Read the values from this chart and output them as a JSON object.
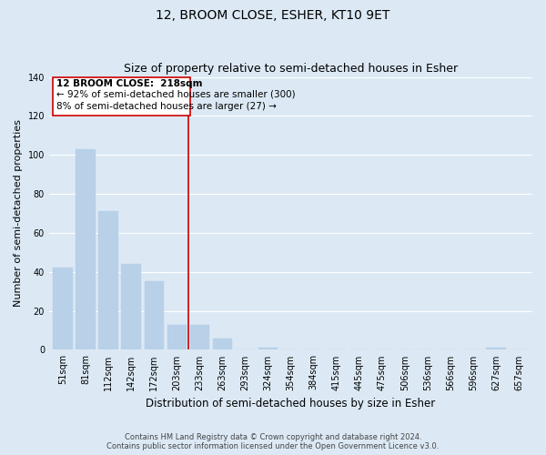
{
  "title": "12, BROOM CLOSE, ESHER, KT10 9ET",
  "subtitle": "Size of property relative to semi-detached houses in Esher",
  "xlabel": "Distribution of semi-detached houses by size in Esher",
  "ylabel": "Number of semi-detached properties",
  "bar_labels": [
    "51sqm",
    "81sqm",
    "112sqm",
    "142sqm",
    "172sqm",
    "203sqm",
    "233sqm",
    "263sqm",
    "293sqm",
    "324sqm",
    "354sqm",
    "384sqm",
    "415sqm",
    "445sqm",
    "475sqm",
    "506sqm",
    "536sqm",
    "566sqm",
    "596sqm",
    "627sqm",
    "657sqm"
  ],
  "bar_values": [
    42,
    103,
    71,
    44,
    35,
    13,
    13,
    6,
    0,
    1,
    0,
    0,
    0,
    0,
    0,
    0,
    0,
    0,
    0,
    1,
    0
  ],
  "bar_color": "#b8d0e8",
  "bar_edge_color": "#b8d0e8",
  "ylim": [
    0,
    140
  ],
  "yticks": [
    0,
    20,
    40,
    60,
    80,
    100,
    120,
    140
  ],
  "property_line_x": 5.5,
  "property_label": "12 BROOM CLOSE:  218sqm",
  "annotation_line1": "← 92% of semi-detached houses are smaller (300)",
  "annotation_line2": "8% of semi-detached houses are larger (27) →",
  "box_facecolor": "#ffffff",
  "box_edgecolor": "#cc0000",
  "vline_color": "#cc0000",
  "background_color": "#dce9f5",
  "grid_color": "#ffffff",
  "footer_line1": "Contains HM Land Registry data © Crown copyright and database right 2024.",
  "footer_line2": "Contains public sector information licensed under the Open Government Licence v3.0.",
  "title_fontsize": 10,
  "subtitle_fontsize": 9,
  "axis_label_fontsize": 8.5,
  "tick_fontsize": 7,
  "annotation_fontsize": 7.5,
  "footer_fontsize": 6,
  "ylabel_fontsize": 8
}
